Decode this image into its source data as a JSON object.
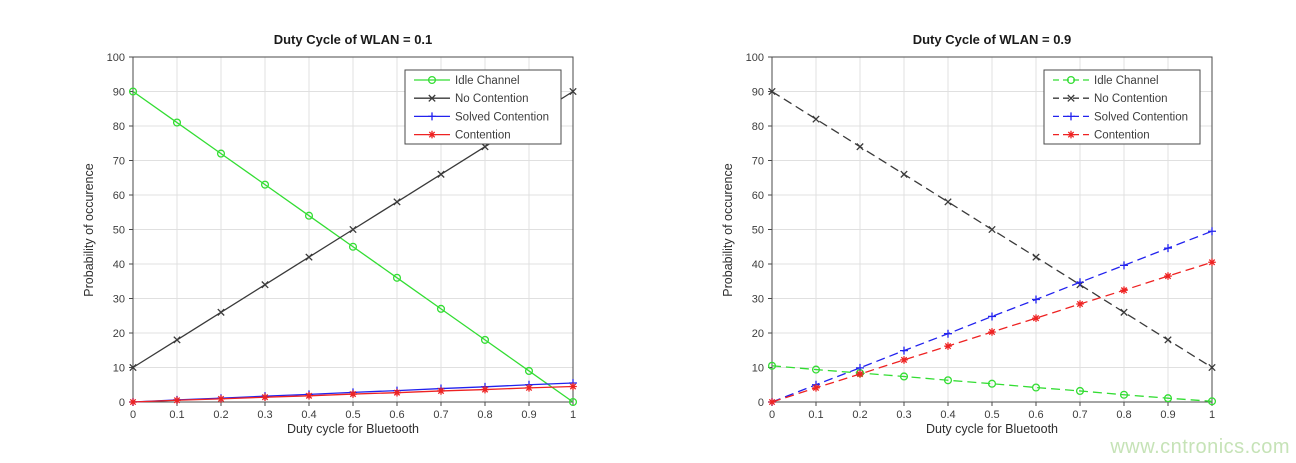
{
  "watermark": "www.cntronics.com",
  "colors": {
    "idle": "#33dd33",
    "no_contention": "#3a3a3a",
    "solved": "#2222ee",
    "contention": "#ee2222",
    "grid": "#e0e0e0",
    "axis": "#4a4a4a",
    "text": "#3d3d3d",
    "legend_border": "#4a4a4a",
    "watermark": "#c6e3b7"
  },
  "chart_data": [
    {
      "type": "line",
      "title": "Duty Cycle of WLAN = 0.1",
      "xlabel": "Duty cycle for Bluetooth",
      "ylabel": "Probability of occurence",
      "line_style": "solid",
      "grid": true,
      "legend_position": "top-right",
      "xlim": [
        0,
        1
      ],
      "ylim": [
        0,
        100
      ],
      "xticks": [
        "0",
        "0.1",
        "0.2",
        "0.3",
        "0.4",
        "0.5",
        "0.6",
        "0.7",
        "0.8",
        "0.9",
        "1"
      ],
      "yticks": [
        0,
        10,
        20,
        30,
        40,
        50,
        60,
        70,
        80,
        90,
        100
      ],
      "x": [
        0,
        0.1,
        0.2,
        0.3,
        0.4,
        0.5,
        0.6,
        0.7,
        0.8,
        0.9,
        1
      ],
      "series": [
        {
          "name": "Idle Channel",
          "marker": "circle",
          "color_key": "idle",
          "values": [
            90,
            81,
            72,
            63,
            54,
            45,
            36,
            27,
            18,
            9,
            0
          ]
        },
        {
          "name": "No Contention",
          "marker": "x",
          "color_key": "no_contention",
          "values": [
            10,
            18,
            26,
            34,
            42,
            50,
            58,
            66,
            74,
            82,
            90
          ]
        },
        {
          "name": "Solved Contention",
          "marker": "plus",
          "color_key": "solved",
          "values": [
            0,
            0.6,
            1.1,
            1.7,
            2.2,
            2.8,
            3.3,
            3.9,
            4.4,
            5.0,
            5.5
          ]
        },
        {
          "name": "Contention",
          "marker": "asterisk",
          "color_key": "contention",
          "values": [
            0,
            0.5,
            0.9,
            1.4,
            1.8,
            2.3,
            2.7,
            3.2,
            3.6,
            4.1,
            4.5
          ]
        }
      ]
    },
    {
      "type": "line",
      "title": "Duty Cycle of WLAN = 0.9",
      "xlabel": "Duty cycle for Bluetooth",
      "ylabel": "Probability of occurence",
      "line_style": "dashed",
      "grid": true,
      "legend_position": "top-right",
      "xlim": [
        0,
        1
      ],
      "ylim": [
        0,
        100
      ],
      "xticks": [
        "0",
        "0.1",
        "0.2",
        "0.3",
        "0.4",
        "0.5",
        "0.6",
        "0.7",
        "0.8",
        "0.9",
        "1"
      ],
      "yticks": [
        0,
        10,
        20,
        30,
        40,
        50,
        60,
        70,
        80,
        90,
        100
      ],
      "x": [
        0,
        0.1,
        0.2,
        0.3,
        0.4,
        0.5,
        0.6,
        0.7,
        0.8,
        0.9,
        1
      ],
      "series": [
        {
          "name": "Idle Channel",
          "marker": "circle",
          "color_key": "idle",
          "values": [
            10.5,
            9.4,
            8.4,
            7.4,
            6.3,
            5.3,
            4.2,
            3.2,
            2.1,
            1.1,
            0.2
          ]
        },
        {
          "name": "No Contention",
          "marker": "x",
          "color_key": "no_contention",
          "values": [
            90,
            82,
            74,
            66,
            58,
            50,
            42,
            34,
            26,
            18,
            10
          ]
        },
        {
          "name": "Solved Contention",
          "marker": "plus",
          "color_key": "solved",
          "values": [
            0,
            5.0,
            9.9,
            14.9,
            19.8,
            24.8,
            29.7,
            34.7,
            39.6,
            44.6,
            49.5
          ]
        },
        {
          "name": "Contention",
          "marker": "asterisk",
          "color_key": "contention",
          "values": [
            0,
            4.1,
            8.1,
            12.2,
            16.2,
            20.3,
            24.3,
            28.4,
            32.4,
            36.5,
            40.5
          ]
        }
      ]
    }
  ]
}
